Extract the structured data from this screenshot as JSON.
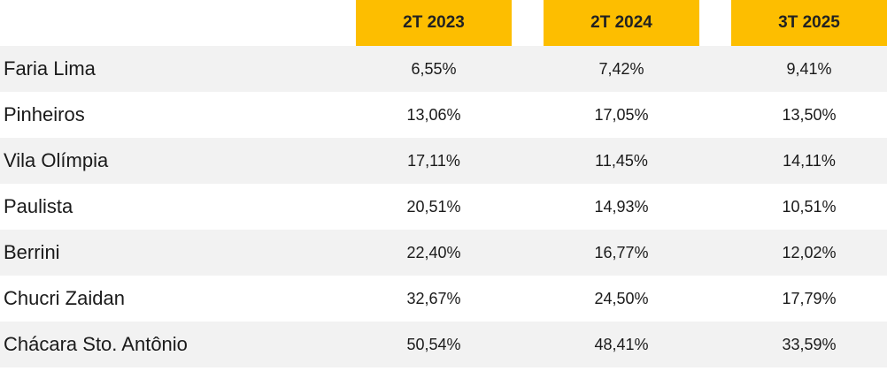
{
  "colors": {
    "header_bg": "#FDBE00",
    "stripe_bg": "#F2F2F2",
    "plain_bg": "#FFFFFF",
    "text": "#1A1A1A"
  },
  "chart_data": {
    "type": "table",
    "columns": [
      "2T 2023",
      "2T 2024",
      "3T 2025"
    ],
    "rows": [
      {
        "label": "Faria Lima",
        "values": [
          "6,55%",
          "7,42%",
          "9,41%"
        ]
      },
      {
        "label": "Pinheiros",
        "values": [
          "13,06%",
          "17,05%",
          "13,50%"
        ]
      },
      {
        "label": "Vila Olímpia",
        "values": [
          "17,11%",
          "11,45%",
          "14,11%"
        ]
      },
      {
        "label": "Paulista",
        "values": [
          "20,51%",
          "14,93%",
          "10,51%"
        ]
      },
      {
        "label": "Berrini",
        "values": [
          "22,40%",
          "16,77%",
          "12,02%"
        ]
      },
      {
        "label": "Chucri Zaidan",
        "values": [
          "32,67%",
          "24,50%",
          "17,79%"
        ]
      },
      {
        "label": "Chácara Sto. Antônio",
        "values": [
          "50,54%",
          "48,41%",
          "33,59%"
        ]
      }
    ]
  }
}
